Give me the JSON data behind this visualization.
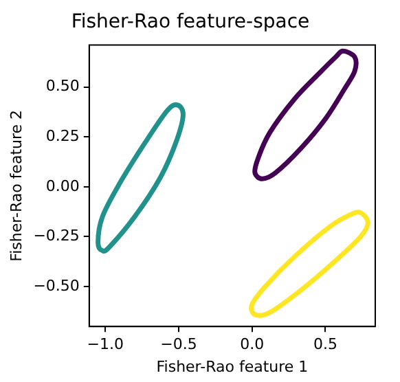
{
  "chart_data": {
    "type": "line",
    "title": "Fisher-Rao feature-space",
    "xlabel": "Fisher-Rao feature 1",
    "ylabel": "Fisher-Rao feature 2",
    "xlim": [
      -1.11,
      0.84
    ],
    "ylim": [
      -0.7,
      0.71
    ],
    "xticks": [
      {
        "value": -1.0,
        "label": "−1.0"
      },
      {
        "value": -0.5,
        "label": "−0.5"
      },
      {
        "value": 0.0,
        "label": "0.0"
      },
      {
        "value": 0.5,
        "label": "0.5"
      }
    ],
    "yticks": [
      {
        "value": -0.5,
        "label": "−0.50"
      },
      {
        "value": -0.25,
        "label": "−0.25"
      },
      {
        "value": 0.0,
        "label": "0.00"
      },
      {
        "value": 0.25,
        "label": "0.25"
      },
      {
        "value": 0.5,
        "label": "0.50"
      }
    ],
    "grid": false,
    "legend": false
  }
}
